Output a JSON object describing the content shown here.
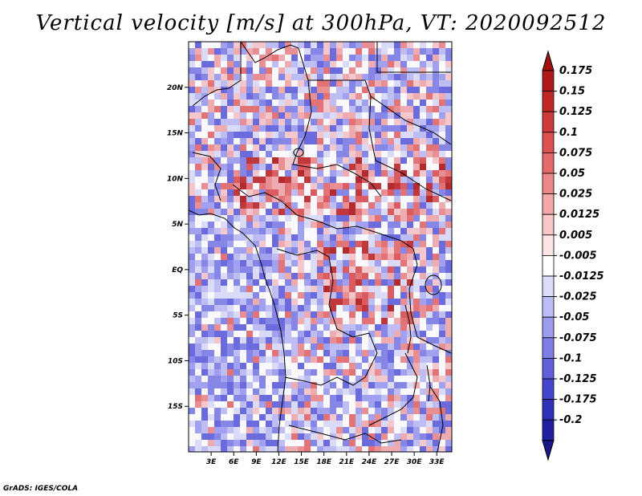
{
  "title": "Vertical velocity [m/s] at 300hPa, VT: 2020092512",
  "credit": "GrADS: IGES/COLA",
  "map": {
    "lon_range": [
      0,
      35
    ],
    "lat_range": [
      -20,
      25
    ],
    "lat_ticks": [
      {
        "lat": 20,
        "label": "20N"
      },
      {
        "lat": 15,
        "label": "15N"
      },
      {
        "lat": 10,
        "label": "10N"
      },
      {
        "lat": 5,
        "label": "5N"
      },
      {
        "lat": 0,
        "label": "EQ"
      },
      {
        "lat": -5,
        "label": "5S"
      },
      {
        "lat": -10,
        "label": "10S"
      },
      {
        "lat": -15,
        "label": "15S"
      }
    ],
    "lon_ticks": [
      {
        "lon": 3,
        "label": "3E"
      },
      {
        "lon": 6,
        "label": "6E"
      },
      {
        "lon": 9,
        "label": "9E"
      },
      {
        "lon": 12,
        "label": "12E"
      },
      {
        "lon": 15,
        "label": "15E"
      },
      {
        "lon": 18,
        "label": "18E"
      },
      {
        "lon": 21,
        "label": "21E"
      },
      {
        "lon": 24,
        "label": "24E"
      },
      {
        "lon": 27,
        "label": "27E"
      },
      {
        "lon": 30,
        "label": "30E"
      },
      {
        "lon": 33,
        "label": "33E"
      }
    ]
  },
  "colorbar": {
    "levels": [
      {
        "label": "0.175",
        "color": "#b01a1a"
      },
      {
        "label": "0.15",
        "color": "#c02828"
      },
      {
        "label": "0.125",
        "color": "#cf3a3a"
      },
      {
        "label": "0.1",
        "color": "#dc5050"
      },
      {
        "label": "0.075",
        "color": "#e46a6a"
      },
      {
        "label": "0.05",
        "color": "#ec8888"
      },
      {
        "label": "0.025",
        "color": "#f2a8a8"
      },
      {
        "label": "0.0125",
        "color": "#f7c6c6"
      },
      {
        "label": "0.005",
        "color": "#fbe4e4"
      },
      {
        "label": "-0.005",
        "color": "#ffffff"
      },
      {
        "label": "-0.0125",
        "color": "#dcdcfa"
      },
      {
        "label": "-0.025",
        "color": "#bdbdf5"
      },
      {
        "label": "-0.05",
        "color": "#9c9cef"
      },
      {
        "label": "-0.075",
        "color": "#7e7ee6"
      },
      {
        "label": "-0.1",
        "color": "#6060dc"
      },
      {
        "label": "-0.125",
        "color": "#4646cc"
      },
      {
        "label": "-0.175",
        "color": "#3030b8"
      },
      {
        "label": "-0.2",
        "color": "#2020a0"
      }
    ],
    "top_arrow_color": "#a01010",
    "bottom_arrow_color": "#18188a"
  }
}
